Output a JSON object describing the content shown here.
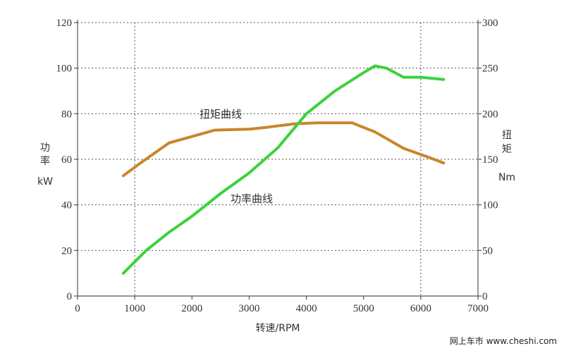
{
  "chart_data": {
    "type": "line",
    "title": "",
    "xlabel": "转速/RPM",
    "ylabel_left": [
      "功",
      "率",
      "kW"
    ],
    "ylabel_right": [
      "扭",
      "矩",
      "Nm"
    ],
    "xlim": [
      0,
      7000
    ],
    "ylim_left": [
      0,
      120
    ],
    "ylim_right": [
      0,
      300
    ],
    "x_ticks": [
      0,
      1000,
      2000,
      3000,
      4000,
      5000,
      6000,
      7000
    ],
    "y_left_ticks": [
      0,
      20,
      40,
      60,
      80,
      100,
      120
    ],
    "y_right_ticks": [
      0,
      50,
      100,
      150,
      200,
      250,
      300
    ],
    "grid": true,
    "series": [
      {
        "name": "扭矩曲线",
        "axis": "right",
        "color": "#c8862a",
        "x": [
          800,
          1100,
          1600,
          2000,
          2400,
          3000,
          3300,
          3800,
          4200,
          4800,
          5200,
          5700,
          6100,
          6400
        ],
        "y": [
          132,
          146,
          168,
          175,
          182,
          183,
          185,
          189,
          190,
          190,
          180,
          162,
          153,
          146
        ]
      },
      {
        "name": "功率曲线",
        "axis": "left",
        "color": "#3cd23c",
        "x": [
          800,
          1200,
          1600,
          2000,
          2500,
          3000,
          3500,
          4000,
          4500,
          5000,
          5200,
          5400,
          5700,
          6000,
          6400
        ],
        "y": [
          10,
          20,
          28,
          35,
          45,
          54,
          65,
          80,
          90,
          98,
          101,
          100,
          96,
          96,
          95
        ]
      }
    ],
    "annotations": {
      "torque_curve_label": "扭矩曲线",
      "power_curve_label": "功率曲线"
    }
  },
  "watermark": "网上车市 www.cheshi.com"
}
